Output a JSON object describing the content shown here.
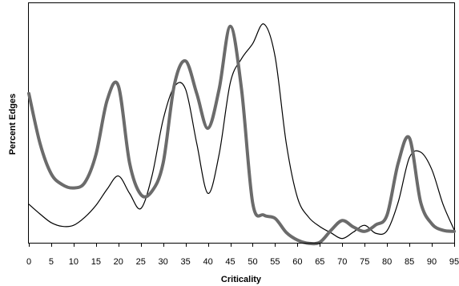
{
  "chart_data": {
    "type": "line",
    "xlabel": "Criticality",
    "ylabel": "Percent Edges",
    "xlim": [
      0,
      95
    ],
    "ylim": [
      0,
      100
    ],
    "x_ticks": [
      0,
      5,
      10,
      15,
      20,
      25,
      30,
      35,
      40,
      45,
      50,
      55,
      60,
      65,
      70,
      75,
      80,
      85,
      90,
      95
    ],
    "y_tick_labels_shown": false,
    "grid": false,
    "legend": "none",
    "series": [
      {
        "color": "#000000",
        "x": [
          0,
          2.5,
          5,
          7.5,
          10,
          12.5,
          15,
          17.5,
          20,
          22.5,
          25,
          27.5,
          30,
          32.5,
          35,
          37.5,
          40,
          42.5,
          45,
          47.5,
          50,
          52.5,
          55,
          57.5,
          60,
          62.5,
          65,
          67.5,
          70,
          72.5,
          75,
          77.5,
          80,
          82.5,
          85,
          87.5,
          90,
          92.5,
          95
        ],
        "values": [
          17,
          12.5,
          8.5,
          6.8,
          7.3,
          11,
          16.5,
          24,
          30,
          22,
          15,
          30,
          56,
          71.2,
          70,
          45,
          22,
          40,
          73,
          84,
          91,
          100,
          85,
          45,
          20,
          11,
          6.7,
          3.8,
          1.2,
          4.2,
          7.3,
          3.6,
          4.8,
          18,
          38.5,
          41,
          33,
          17,
          5.2
        ]
      },
      {
        "color": "#6b6b6b",
        "x": [
          0,
          2.5,
          5,
          7.5,
          10,
          12.5,
          15,
          17.5,
          20,
          22.5,
          25,
          27.5,
          30,
          32.5,
          35,
          37.5,
          40,
          42.5,
          45,
          47.5,
          50,
          52.5,
          55,
          57.5,
          60,
          62.5,
          65,
          67.5,
          70,
          72.5,
          75,
          77.5,
          80,
          82.5,
          85,
          87.5,
          90,
          92.5,
          95
        ],
        "values": [
          68,
          45,
          31,
          26,
          24.5,
          27,
          40,
          65,
          71.5,
          36,
          21.5,
          23,
          36,
          72,
          83,
          68,
          52,
          70,
          99,
          70,
          17.5,
          12,
          10.5,
          4,
          0.5,
          -1,
          -0.5,
          5,
          9.5,
          6.5,
          4.5,
          7.5,
          12,
          36,
          47.5,
          18,
          8,
          5,
          4.5
        ]
      }
    ]
  }
}
